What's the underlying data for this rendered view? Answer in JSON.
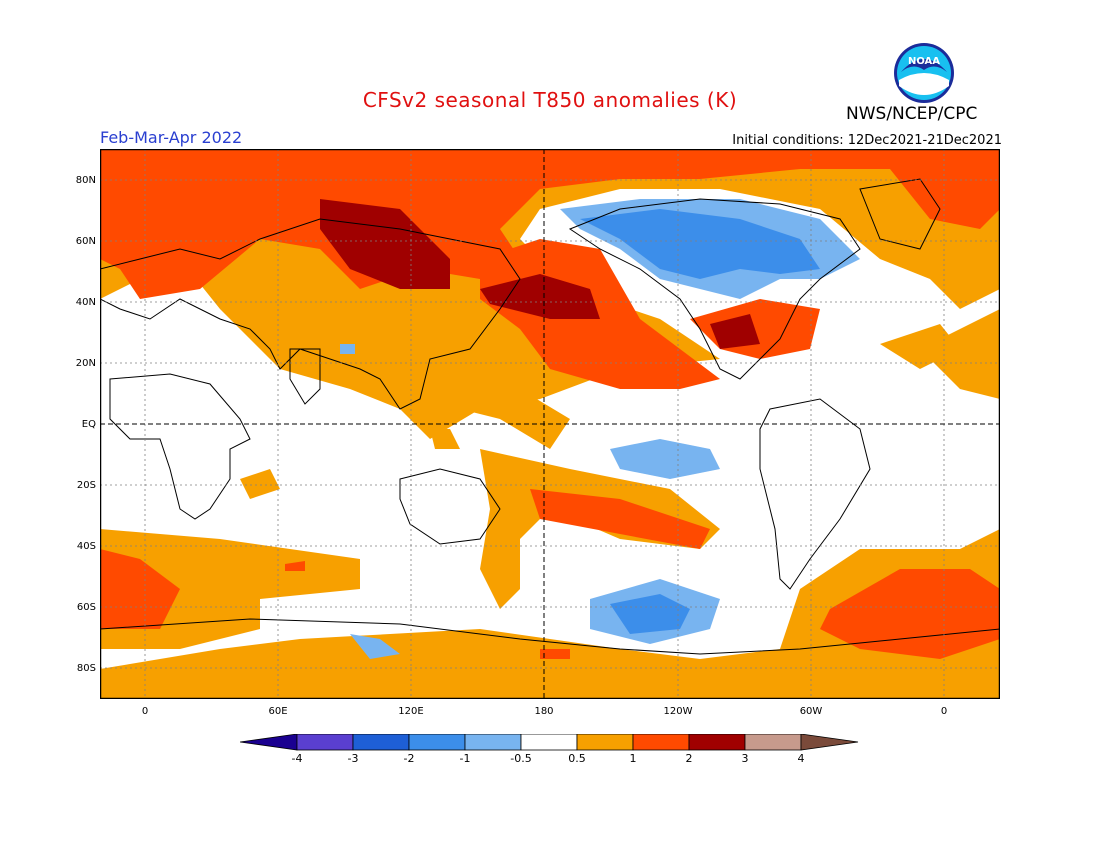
{
  "title": "CFSv2 seasonal T850 anomalies (K)",
  "organization": "NWS/NCEP/CPC",
  "logo_text": "NOAA",
  "period": "Feb-Mar-Apr 2022",
  "initial_conditions": "Initial conditions: 12Dec2021-21Dec2021",
  "lat_labels": [
    "80N",
    "60N",
    "40N",
    "20N",
    "EQ",
    "20S",
    "40S",
    "60S",
    "80S"
  ],
  "lon_labels": [
    "0",
    "60E",
    "120E",
    "180",
    "120W",
    "60W",
    "0"
  ],
  "colorbar": {
    "labels": [
      "-4",
      "-3",
      "-2",
      "-1",
      "-0.5",
      "0.5",
      "1",
      "2",
      "3",
      "4"
    ],
    "colors": [
      "#1a0090",
      "#5a3fd0",
      "#1e5fd6",
      "#3c8eea",
      "#78b4f0",
      "#ffffff",
      "#f7a000",
      "#ff4a00",
      "#a00000",
      "#c79a8c",
      "#7a4a3a"
    ]
  },
  "anomaly_colors": {
    "warm_0_5": "#f7a000",
    "warm_1": "#ff4a00",
    "warm_2": "#a00000",
    "cool_0_5": "#78b4f0",
    "cool_1": "#3c8eea",
    "cool_2": "#1e5fd6"
  }
}
